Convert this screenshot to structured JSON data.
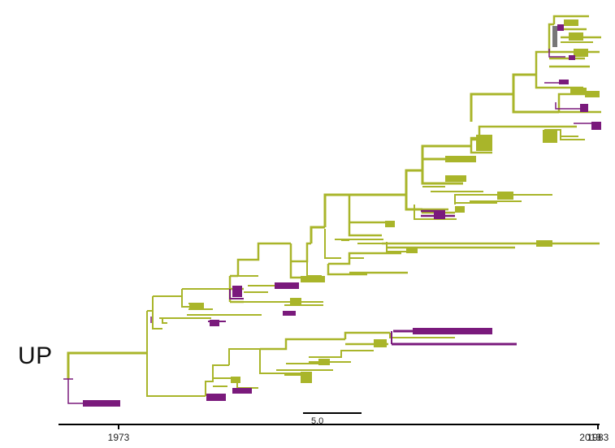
{
  "panel": {
    "label": "UP"
  },
  "colors": {
    "lineage_a": "#a9b52a",
    "lineage_b": "#7a1a7c",
    "lineage_c": "#777777",
    "axis": "#000000"
  },
  "legend_scale": {
    "label": "5.0",
    "years": 5.0
  },
  "axis": {
    "ticks": [
      {
        "year": 1973,
        "label": "1973"
      },
      {
        "year": 1983,
        "label": "1983"
      },
      {
        "year": 1993,
        "label": "1993"
      },
      {
        "year": 2003,
        "label": "2003"
      },
      {
        "year": 2013,
        "label": "2013"
      }
    ]
  }
}
